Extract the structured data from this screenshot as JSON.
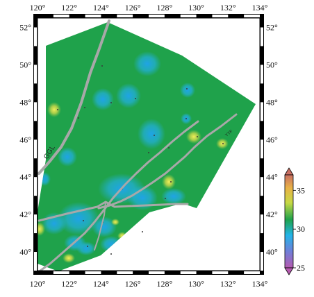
{
  "map": {
    "lon_ticks": [
      "120°",
      "122°",
      "124°",
      "126°",
      "128°",
      "130°",
      "132°",
      "134°"
    ],
    "lat_ticks": [
      "52°",
      "50°",
      "48°",
      "46°",
      "44°",
      "42°",
      "40°"
    ],
    "lon_range": [
      120,
      134
    ],
    "lat_range": [
      39,
      52.5
    ],
    "lon_values": [
      120,
      122,
      124,
      126,
      128,
      130,
      132,
      134
    ],
    "lat_values": [
      52,
      50,
      48,
      46,
      44,
      42,
      40
    ],
    "fault_labels": [
      {
        "id": "ggl",
        "text": "GGL"
      },
      {
        "id": "yyf",
        "text": "YYF"
      }
    ],
    "colors": {
      "background_field": "#1fa24b",
      "low_anomaly": "#1aa6e8",
      "high_anomaly": "#e8e04a",
      "fault_lines": "#a8a8a8",
      "frame": "#000000"
    }
  },
  "colorbar": {
    "ticks": [
      "35",
      "30",
      "25"
    ],
    "values": [
      35,
      30,
      25
    ],
    "range": [
      25,
      37
    ],
    "stops": [
      "#b65bb0",
      "#6f7fd8",
      "#23b4e8",
      "#1fa24b",
      "#c7d945",
      "#e8b247",
      "#c96f63"
    ]
  }
}
